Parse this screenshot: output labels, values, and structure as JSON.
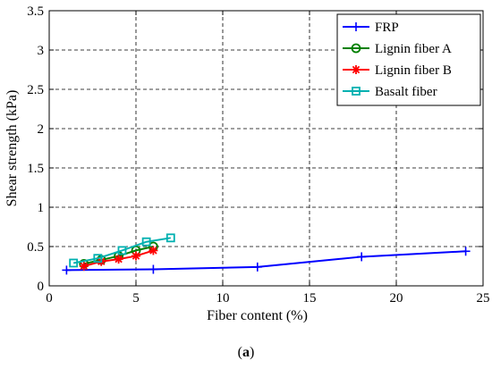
{
  "caption": {
    "open": "(",
    "letter": "a",
    "close": ")"
  },
  "chart_data": {
    "type": "line",
    "title": "",
    "xlabel": "Fiber content (%)",
    "ylabel": "Shear strength (kPa)",
    "xlim": [
      0,
      25
    ],
    "ylim": [
      0,
      3.5
    ],
    "xticks": [
      "0",
      "5",
      "10",
      "15",
      "20",
      "25"
    ],
    "xtick_values": [
      0,
      5,
      10,
      15,
      20,
      25
    ],
    "yticks": [
      "0",
      "0.5",
      "1",
      "1.5",
      "2",
      "2.5",
      "3",
      "3.5"
    ],
    "ytick_values": [
      0,
      0.5,
      1,
      1.5,
      2,
      2.5,
      3,
      3.5
    ],
    "grid": true,
    "legend_position": "top-right",
    "series": [
      {
        "name": "FRP",
        "color": "#0000ff",
        "marker": "plus",
        "x": [
          1,
          6,
          12,
          18,
          24
        ],
        "y": [
          0.2,
          0.21,
          0.24,
          0.37,
          0.44
        ]
      },
      {
        "name": "Lignin fiber A",
        "color": "#008000",
        "marker": "circle",
        "x": [
          2,
          3,
          4,
          5,
          6
        ],
        "y": [
          0.28,
          0.33,
          0.38,
          0.45,
          0.5
        ]
      },
      {
        "name": "Lignin fiber B",
        "color": "#ff0000",
        "marker": "star",
        "x": [
          2,
          3,
          4,
          5,
          6
        ],
        "y": [
          0.25,
          0.31,
          0.34,
          0.38,
          0.45
        ]
      },
      {
        "name": "Basalt fiber",
        "color": "#00b0b0",
        "marker": "square",
        "x": [
          1.4,
          2.8,
          4.2,
          5.6,
          7
        ],
        "y": [
          0.29,
          0.35,
          0.45,
          0.56,
          0.61
        ]
      }
    ]
  }
}
